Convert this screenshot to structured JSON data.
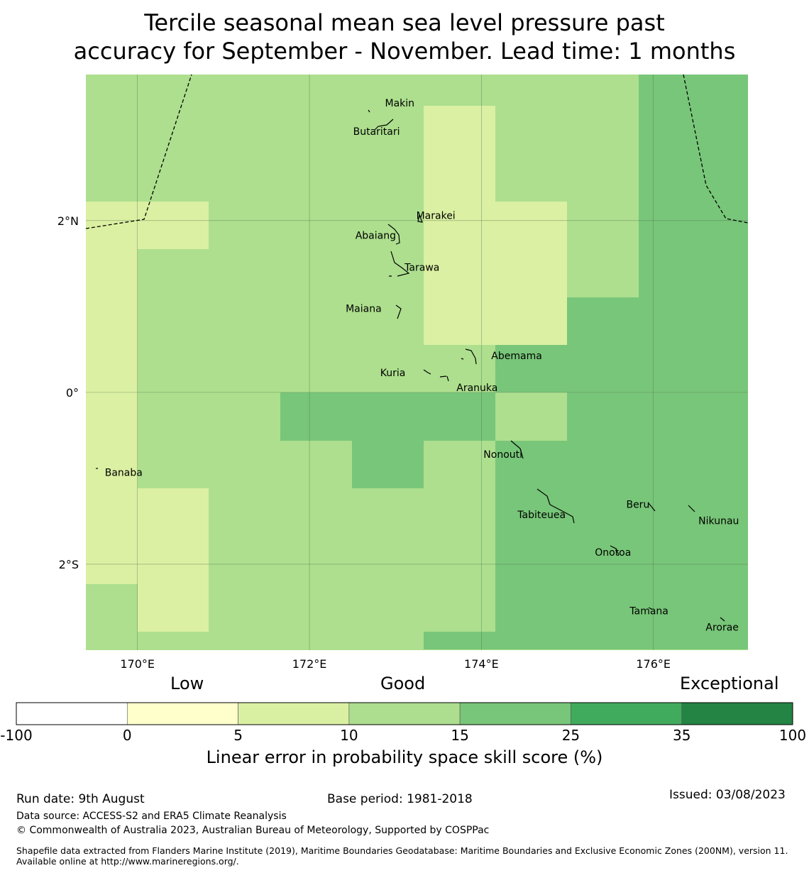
{
  "title": {
    "line1": "Tercile seasonal mean sea level pressure past",
    "line2": "accuracy for September - November. Lead time: 1 months"
  },
  "map": {
    "lon_range": [
      169.4,
      177.1
    ],
    "lat_range": [
      -3.0,
      3.7
    ],
    "x_ticks": [
      {
        "value": 170,
        "label": "170°E"
      },
      {
        "value": 172,
        "label": "172°E"
      },
      {
        "value": 174,
        "label": "174°E"
      },
      {
        "value": 176,
        "label": "176°E"
      }
    ],
    "y_ticks": [
      {
        "value": 2,
        "label": "2°N"
      },
      {
        "value": 0,
        "label": "0°"
      },
      {
        "value": -2,
        "label": "2°S"
      }
    ],
    "colors": {
      "c5_10": "#dbf0a2",
      "c10_15": "#addf8e",
      "c15_25": "#78c679"
    },
    "places": [
      {
        "name": "Makin",
        "lon": 173.05,
        "lat": 3.36
      },
      {
        "name": "Butaritari",
        "lon": 172.78,
        "lat": 3.03
      },
      {
        "name": "Marakei",
        "lon": 173.47,
        "lat": 2.05
      },
      {
        "name": "Abaiang",
        "lon": 172.77,
        "lat": 1.82
      },
      {
        "name": "Tarawa",
        "lon": 173.31,
        "lat": 1.45
      },
      {
        "name": "Maiana",
        "lon": 172.63,
        "lat": 0.97
      },
      {
        "name": "Abemama",
        "lon": 174.41,
        "lat": 0.42
      },
      {
        "name": "Kuria",
        "lon": 172.97,
        "lat": 0.22
      },
      {
        "name": "Aranuka",
        "lon": 173.95,
        "lat": 0.05
      },
      {
        "name": "Banaba",
        "lon": 169.84,
        "lat": -0.94
      },
      {
        "name": "Nonouti",
        "lon": 174.25,
        "lat": -0.73
      },
      {
        "name": "Beru",
        "lon": 175.82,
        "lat": -1.31
      },
      {
        "name": "Nikunau",
        "lon": 176.76,
        "lat": -1.5
      },
      {
        "name": "Tabiteuea",
        "lon": 174.7,
        "lat": -1.43
      },
      {
        "name": "Onotoa",
        "lon": 175.53,
        "lat": -1.87
      },
      {
        "name": "Tamana",
        "lon": 175.95,
        "lat": -2.55
      },
      {
        "name": "Arorae",
        "lon": 176.8,
        "lat": -2.74
      }
    ]
  },
  "legend": {
    "low": "Low",
    "good": "Good",
    "exceptional": "Exceptional",
    "bins": [
      {
        "from": "-100",
        "to": "0",
        "color": "#ffffff"
      },
      {
        "from": "0",
        "to": "5",
        "color": "#ffffcc"
      },
      {
        "from": "5",
        "to": "10",
        "color": "#d9f0a3"
      },
      {
        "from": "10",
        "to": "15",
        "color": "#addd8e"
      },
      {
        "from": "15",
        "to": "25",
        "color": "#78c679"
      },
      {
        "from": "25",
        "to": "35",
        "color": "#41ab5d"
      },
      {
        "from": "35",
        "to": "100",
        "color": "#238443"
      }
    ],
    "ticks": [
      "-100",
      "0",
      "5",
      "10",
      "15",
      "25",
      "35",
      "100"
    ],
    "title": "Linear error in probability space skill score (%)"
  },
  "footer": {
    "run_date": "Run date: 9th August",
    "base_period": "Base period: 1981-2018",
    "issued": "Issued: 03/08/2023",
    "data_source": "Data source: ACCESS-S2 and ERA5 Climate Reanalysis",
    "copyright": "© Commonwealth of Australia 2023, Australian Bureau of Meteorology, Supported by COSPPac",
    "shapefile": "Shapefile data extracted from Flanders Marine Institute (2019), Maritime Boundaries Geodatabase: Maritime Boundaries and Exclusive Economic Zones (200NM), version 11. Available online at http://www.marineregions.org/."
  }
}
